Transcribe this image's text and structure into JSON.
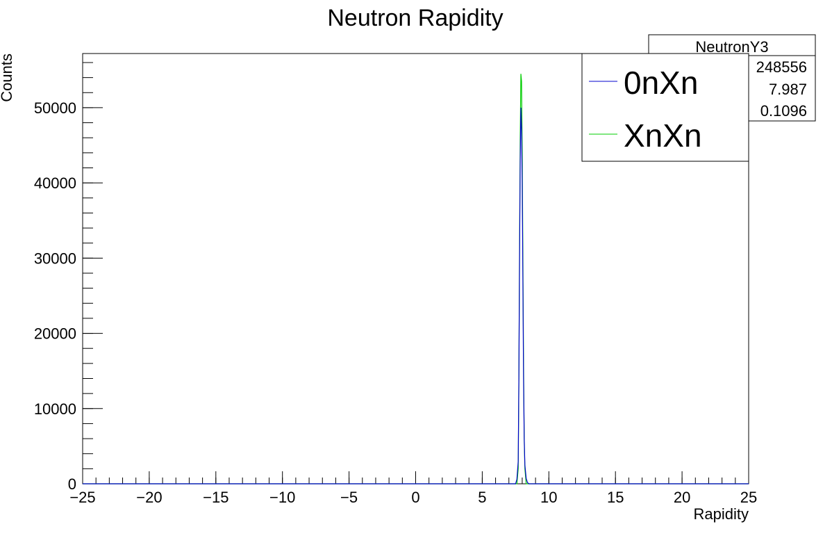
{
  "chart_data": {
    "type": "line",
    "title": "Neutron Rapidity",
    "xlabel": "Rapidity",
    "ylabel": "Counts",
    "xlim": [
      -25,
      25
    ],
    "ylim": [
      0,
      57200
    ],
    "x_ticks": [
      -25,
      -20,
      -15,
      -10,
      -5,
      0,
      5,
      10,
      15,
      20,
      25
    ],
    "y_ticks": [
      0,
      10000,
      20000,
      30000,
      40000,
      50000
    ],
    "legend_position": "top-right",
    "series": [
      {
        "name": "0nXn",
        "color": "#0000cc",
        "x": [
          -25,
          7.5,
          7.6,
          7.7,
          7.75,
          7.8,
          7.85,
          7.9,
          7.95,
          8.0,
          8.05,
          8.1,
          8.15,
          8.2,
          8.3,
          8.4,
          8.5,
          25
        ],
        "y": [
          0,
          0,
          600,
          3000,
          14000,
          30000,
          43000,
          50000,
          47000,
          40000,
          27000,
          14000,
          6000,
          2500,
          700,
          150,
          0,
          0
        ]
      },
      {
        "name": "XnXn",
        "color": "#00cc00",
        "x": [
          -25,
          7.6,
          7.7,
          7.75,
          7.8,
          7.85,
          7.9,
          7.95,
          8.0,
          8.05,
          8.1,
          8.15,
          8.2,
          8.3,
          25
        ],
        "y": [
          0,
          0,
          2000,
          14000,
          31000,
          46000,
          54500,
          53500,
          44000,
          30000,
          16000,
          6000,
          2000,
          0,
          0
        ]
      }
    ]
  },
  "stats_box": {
    "title": "NeutronY3",
    "values": [
      "248556",
      "7.987",
      "0.1096"
    ]
  }
}
